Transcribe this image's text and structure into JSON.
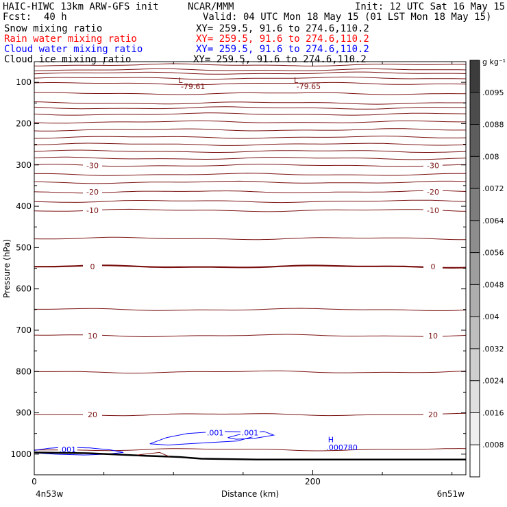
{
  "header": {
    "model": "HAIC-HIWC 13km ARW-GFS init",
    "org": "NCAR/MMM",
    "init": "Init: 12 UTC Sat 16 May 15",
    "fcst_label": "Fcst:",
    "fcst_value": "40 h",
    "valid": "Valid: 04 UTC Mon 18 May 15 (01 LST Mon 18 May 15)",
    "fields": [
      {
        "name": "Snow mixing ratio",
        "xy": "XY= 259.5, 91.6 to 274.6,110.2",
        "color": "#000000"
      },
      {
        "name": "Rain water mixing ratio",
        "xy": "XY= 259.5, 91.6 to 274.6,110.2",
        "color": "#ff0000"
      },
      {
        "name": "Cloud water mixing ratio",
        "xy": "XY= 259.5, 91.6 to 274.6,110.2",
        "color": "#0000ff"
      },
      {
        "name": "Cloud ice mixing ratio",
        "xy": "XY= 259.5, 91.6 to 274.6,110.2",
        "color": "#000000"
      }
    ]
  },
  "chart_data": {
    "type": "contour",
    "xlabel": "Distance (km)",
    "ylabel": "Pressure (hPa)",
    "xlim": [
      0,
      310
    ],
    "ylim": [
      1050,
      50
    ],
    "x_ticks": [
      0,
      200
    ],
    "y_ticks": [
      100,
      200,
      300,
      400,
      500,
      600,
      700,
      800,
      900,
      1000
    ],
    "x_end_labels": {
      "left": "4n53w",
      "right": "6n51w"
    },
    "grid": false,
    "isotherm_color": "#7a1010",
    "isotherm_levels": [
      {
        "p": 58
      },
      {
        "p": 70
      },
      {
        "p": 78
      },
      {
        "p": 90
      },
      {
        "p": 103
      },
      {
        "p": 127,
        "value": -79.61
      },
      {
        "p": 150
      },
      {
        "p": 162
      },
      {
        "p": 177
      },
      {
        "p": 196
      },
      {
        "p": 215
      },
      {
        "p": 233
      },
      {
        "p": 250
      },
      {
        "p": 267
      },
      {
        "p": 284
      },
      {
        "p": 301,
        "label": "-30"
      },
      {
        "p": 323
      },
      {
        "p": 342
      },
      {
        "p": 365,
        "label": "-20"
      },
      {
        "p": 388
      },
      {
        "p": 410,
        "label": "-10"
      },
      {
        "p": 478
      },
      {
        "p": 546,
        "label": "0",
        "bold": true
      },
      {
        "p": 650
      },
      {
        "p": 713,
        "label": "10"
      },
      {
        "p": 801
      },
      {
        "p": 904,
        "label": "20"
      },
      {
        "p": 989
      }
    ],
    "annotations": [
      {
        "text": "L",
        "x": 105,
        "p": 95,
        "color": "#7a1010"
      },
      {
        "text": "-79.61",
        "x": 114,
        "p": 110,
        "color": "#7a1010"
      },
      {
        "text": "L",
        "x": 188,
        "p": 95,
        "color": "#7a1010"
      },
      {
        "text": "-79.65",
        "x": 197,
        "p": 110,
        "color": "#7a1010"
      },
      {
        "text": "H",
        "x": 213,
        "p": 965,
        "color": "#0000ff"
      },
      {
        "text": ".000780",
        "x": 221,
        "p": 984,
        "color": "#0000ff"
      }
    ],
    "cloud_water_contours": [
      {
        "value": ".001",
        "color": "#0000ff"
      },
      {
        "value": ".001",
        "color": "#0000ff"
      },
      {
        "value": ".001",
        "color": "#0000ff"
      }
    ],
    "colorbar": {
      "unit": "g kg⁻¹",
      "labels": [
        ".0095",
        ".0088",
        ".008",
        ".0072",
        ".0064",
        ".0056",
        ".0048",
        ".004",
        ".0032",
        ".0024",
        ".0016",
        ".0008"
      ]
    }
  }
}
